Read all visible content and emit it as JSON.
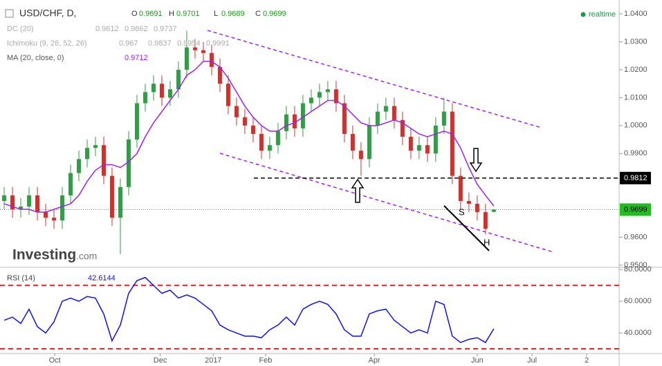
{
  "chart_data": [
    {
      "type": "candlestick",
      "title": "USD/CHF, D,",
      "ohlc_labels": [
        "O",
        "H",
        "L",
        "C"
      ],
      "open": [
        0.973,
        0.975,
        0.97,
        0.971,
        0.975,
        0.969,
        0.967,
        0.966,
        0.975,
        0.983,
        0.988,
        0.992,
        0.993,
        0.982,
        0.967,
        0.978,
        0.995,
        1.008,
        1.012,
        1.015,
        1.01,
        1.013,
        1.02,
        1.028,
        1.027,
        1.026,
        1.021,
        1.015,
        1.007,
        1.003,
        1.0,
        0.997,
        0.991,
        0.993,
        0.998,
        1.004,
        0.999,
        1.008,
        1.01,
        1.012,
        1.013,
        1.008,
        0.997,
        0.991,
        0.988,
        1.0,
        1.005,
        1.007,
        1.002,
        0.996,
        0.991,
        0.993,
        0.99,
        1.0,
        1.005,
        0.982,
        0.973,
        0.972,
        0.969,
        0.9691
      ],
      "high": [
        0.978,
        0.978,
        0.974,
        0.978,
        0.978,
        0.972,
        0.97,
        0.978,
        0.986,
        0.991,
        0.995,
        0.996,
        0.996,
        0.985,
        0.981,
        0.998,
        1.011,
        1.015,
        1.018,
        1.018,
        1.016,
        1.023,
        1.034,
        1.031,
        1.03,
        1.029,
        1.024,
        1.018,
        1.01,
        1.006,
        1.003,
        1.0,
        0.996,
        1.001,
        1.007,
        1.007,
        1.011,
        1.013,
        1.015,
        1.016,
        1.016,
        1.011,
        1.0,
        0.994,
        1.003,
        1.008,
        1.01,
        1.01,
        1.005,
        0.999,
        0.996,
        0.996,
        1.003,
        1.01,
        1.008,
        0.985,
        0.976,
        0.975,
        0.972,
        0.9701
      ],
      "low": [
        0.97,
        0.967,
        0.967,
        0.968,
        0.966,
        0.964,
        0.963,
        0.963,
        0.972,
        0.98,
        0.985,
        0.989,
        0.979,
        0.964,
        0.954,
        0.975,
        0.992,
        1.005,
        1.009,
        1.007,
        1.007,
        1.01,
        1.017,
        1.024,
        1.023,
        1.018,
        1.012,
        1.004,
        1.0,
        0.997,
        0.994,
        0.988,
        0.988,
        0.99,
        0.995,
        0.996,
        0.996,
        1.005,
        1.007,
        1.009,
        1.005,
        0.994,
        0.988,
        0.982,
        0.985,
        0.997,
        1.002,
        0.999,
        0.993,
        0.988,
        0.988,
        0.987,
        0.987,
        0.997,
        0.979,
        0.97,
        0.969,
        0.966,
        0.961,
        0.9689
      ],
      "close": [
        0.975,
        0.97,
        0.971,
        0.975,
        0.969,
        0.967,
        0.966,
        0.975,
        0.983,
        0.988,
        0.992,
        0.993,
        0.982,
        0.967,
        0.978,
        0.995,
        1.008,
        1.012,
        1.015,
        1.01,
        1.013,
        1.02,
        1.028,
        1.027,
        1.026,
        1.021,
        1.015,
        1.007,
        1.003,
        1.0,
        0.997,
        0.991,
        0.993,
        0.998,
        1.004,
        0.999,
        1.008,
        1.01,
        1.012,
        1.013,
        1.008,
        0.997,
        0.991,
        0.988,
        1.0,
        1.005,
        1.007,
        1.002,
        0.996,
        0.991,
        0.993,
        0.99,
        1.0,
        1.005,
        0.982,
        0.973,
        0.972,
        0.969,
        0.963,
        0.9699
      ],
      "up_color": "#2f9e44",
      "down_color": "#d0312d",
      "series": [
        {
          "name": "MA (20, close, 0)",
          "color": "#a020f0",
          "values": [
            0.972,
            0.971,
            0.97,
            0.97,
            0.969,
            0.969,
            0.97,
            0.971,
            0.972,
            0.975,
            0.98,
            0.984,
            0.986,
            0.986,
            0.985,
            0.987,
            0.99,
            0.996,
            1.001,
            1.005,
            1.009,
            1.013,
            1.018,
            1.02,
            1.023,
            1.023,
            1.021,
            1.017,
            1.012,
            1.007,
            1.003,
            1.0,
            0.998,
            0.998,
            1.0,
            1.001,
            1.003,
            1.005,
            1.007,
            1.009,
            1.009,
            1.007,
            1.004,
            1.001,
            1.0,
            1.0,
            1.001,
            1.002,
            1.001,
            0.999,
            0.997,
            0.996,
            0.997,
            0.998,
            0.997,
            0.992,
            0.985,
            0.979,
            0.975,
            0.9712
          ]
        }
      ],
      "indicators": [
        {
          "name": "DC (20)",
          "values": [
            0.9612,
            0.9862,
            0.9737
          ]
        },
        {
          "name": "Ichimoku (9, 26, 52, 26)",
          "values": [
            0.967,
            0.9837,
            0.9954,
            0.9991
          ]
        }
      ],
      "levels": [
        0.9812
      ],
      "annotations": [
        "S",
        "H"
      ],
      "realtime": "realtime",
      "watermark": "Investing",
      "watermark_suffix": ".com",
      "xlim": [
        -0.5,
        74.1
      ],
      "ylim": [
        0.9495,
        1.043
      ],
      "yticks": [
        {
          "value": 1.04,
          "label": "1.0400"
        },
        {
          "value": 1.03,
          "label": "1.0300"
        },
        {
          "value": 1.02,
          "label": "1.0200"
        },
        {
          "value": 1.01,
          "label": "1.0100"
        },
        {
          "value": 1.0,
          "label": "1.0000"
        },
        {
          "value": 0.99,
          "label": "0.9900"
        },
        {
          "value": 0.96,
          "label": "0.9600"
        },
        {
          "value": 0.95,
          "label": "0.9500"
        }
      ]
    },
    {
      "type": "line",
      "series": [
        {
          "name": "RSI (14)",
          "color": "#1010ee",
          "values": [
            48,
            50,
            46,
            55,
            44,
            40,
            47,
            60,
            62,
            60,
            63,
            62,
            52,
            35,
            45,
            65,
            73,
            75,
            70,
            65,
            67,
            62,
            64,
            62,
            58,
            54,
            45,
            42,
            40,
            38,
            38,
            37,
            42,
            45,
            50,
            45,
            55,
            58,
            60,
            58,
            52,
            42,
            38,
            38,
            52,
            54,
            55,
            48,
            44,
            40,
            42,
            40,
            60,
            58,
            38,
            34,
            36,
            37,
            34,
            42.6144
          ]
        }
      ],
      "bands": [
        70,
        30
      ],
      "band_color": "#e02020",
      "xlim": [
        -0.5,
        74.1
      ],
      "ylim": [
        27,
        81
      ],
      "yticks": [
        {
          "value": 80,
          "label": "80.0000"
        },
        {
          "value": 60,
          "label": "60.0000"
        },
        {
          "value": 40,
          "label": "40.0000"
        }
      ],
      "xticks": [
        {
          "value": 6.1,
          "label": "Oct"
        },
        {
          "value": 18.8,
          "label": "Dec"
        },
        {
          "value": 25.2,
          "label": "2017"
        },
        {
          "value": 31.5,
          "label": "Feb"
        },
        {
          "value": 44.6,
          "label": "Apr"
        },
        {
          "value": 57,
          "label": "Jun"
        },
        {
          "value": 63.6,
          "label": "Jul"
        },
        {
          "value": 70.2,
          "label": "2"
        }
      ]
    }
  ]
}
